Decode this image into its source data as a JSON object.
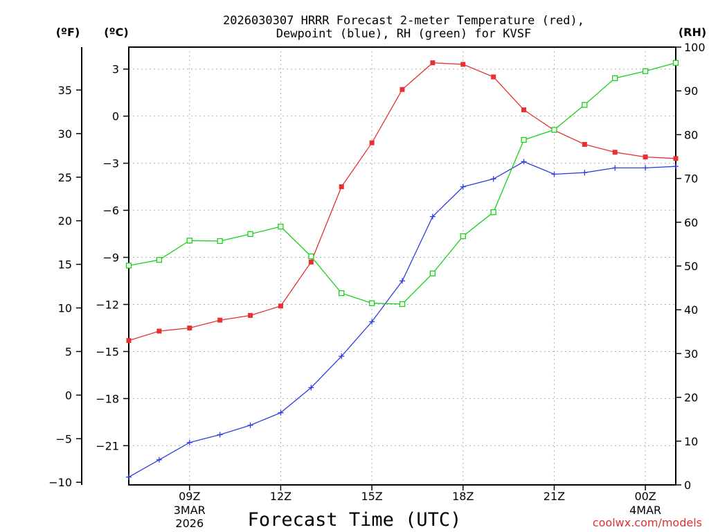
{
  "chart_data": {
    "type": "line",
    "title_line1": "2026030307 HRRR Forecast 2-meter Temperature (red),",
    "title_line2": "Dewpoint (blue), RH (green) for KVSF",
    "xlabel": "Forecast Time (UTC)",
    "unit_f": "(ºF)",
    "unit_c": "(ºC)",
    "unit_rh": "(RH)",
    "watermark": "coolwx.com/models",
    "x_hours": [
      7,
      8,
      9,
      10,
      11,
      12,
      13,
      14,
      15,
      16,
      17,
      18,
      19,
      20,
      21,
      22,
      23,
      24,
      25
    ],
    "x_ticks": [
      {
        "hour": 9,
        "label": "09Z",
        "sub1": "3MAR",
        "sub2": "2026"
      },
      {
        "hour": 12,
        "label": "12Z",
        "sub1": "",
        "sub2": ""
      },
      {
        "hour": 15,
        "label": "15Z",
        "sub1": "",
        "sub2": ""
      },
      {
        "hour": 18,
        "label": "18Z",
        "sub1": "",
        "sub2": ""
      },
      {
        "hour": 21,
        "label": "21Z",
        "sub1": "",
        "sub2": ""
      },
      {
        "hour": 24,
        "label": "00Z",
        "sub1": "4MAR",
        "sub2": ""
      }
    ],
    "xlim": [
      7,
      25
    ],
    "ylim_c": [
      -23.5,
      4.4
    ],
    "ylim_rh": [
      0,
      100
    ],
    "y_ticks_c": [
      3,
      0,
      -3,
      -6,
      -9,
      -12,
      -15,
      -18,
      -21
    ],
    "y_ticks_f": [
      35,
      30,
      25,
      20,
      15,
      10,
      5,
      0,
      -5,
      -10
    ],
    "y_ticks_rh": [
      100,
      90,
      80,
      70,
      60,
      50,
      40,
      30,
      20,
      10,
      0
    ],
    "grid": true,
    "series": [
      {
        "name": "Temperature",
        "color": "#e83030",
        "marker": "filled-square",
        "axis": "c",
        "values": [
          -14.3,
          -13.7,
          -13.5,
          -13.0,
          -12.7,
          -12.1,
          -9.3,
          -4.5,
          -1.7,
          1.7,
          3.4,
          3.3,
          2.5,
          0.4,
          -0.9,
          -1.8,
          -2.3,
          -2.6,
          -2.7
        ]
      },
      {
        "name": "Dewpoint",
        "color": "#2a3fe0",
        "marker": "plus",
        "axis": "c",
        "values": [
          -23.0,
          -21.9,
          -20.8,
          -20.3,
          -19.7,
          -18.9,
          -17.3,
          -15.3,
          -13.1,
          -10.5,
          -6.4,
          -4.5,
          -4.0,
          -2.9,
          -3.7,
          -3.6,
          -3.3,
          -3.3,
          -3.2
        ]
      },
      {
        "name": "RH",
        "color": "#18d018",
        "marker": "open-square",
        "axis": "rh",
        "values": [
          50.1,
          51.4,
          55.8,
          55.7,
          57.3,
          59.0,
          52.2,
          43.8,
          41.5,
          41.3,
          48.3,
          56.8,
          62.3,
          78.8,
          81.1,
          86.8,
          92.9,
          94.5,
          96.4
        ]
      }
    ]
  }
}
